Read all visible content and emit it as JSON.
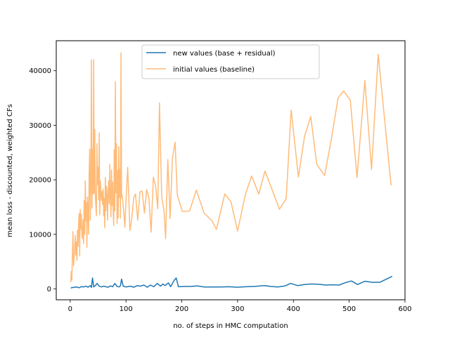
{
  "chart_data": {
    "type": "line",
    "title": "",
    "xlabel": "no. of steps in HMC computation",
    "ylabel": "mean loss - discounted, weighted CFs",
    "xlim": [
      -25,
      600
    ],
    "ylim": [
      -2000,
      45500
    ],
    "xticks": [
      0,
      100,
      200,
      300,
      400,
      500,
      600
    ],
    "yticks": [
      0,
      10000,
      20000,
      30000,
      40000
    ],
    "grid": false,
    "legend_position": "top-center",
    "series": [
      {
        "name": "new values (base + residual)",
        "color": "#1f77b4",
        "points": [
          [
            1,
            150
          ],
          [
            4,
            250
          ],
          [
            8,
            300
          ],
          [
            12,
            350
          ],
          [
            16,
            200
          ],
          [
            20,
            420
          ],
          [
            24,
            350
          ],
          [
            28,
            500
          ],
          [
            32,
            300
          ],
          [
            36,
            600
          ],
          [
            38,
            250
          ],
          [
            40,
            2000
          ],
          [
            42,
            350
          ],
          [
            45,
            600
          ],
          [
            48,
            1000
          ],
          [
            52,
            500
          ],
          [
            56,
            350
          ],
          [
            60,
            500
          ],
          [
            64,
            400
          ],
          [
            68,
            300
          ],
          [
            72,
            550
          ],
          [
            76,
            400
          ],
          [
            80,
            1000
          ],
          [
            84,
            450
          ],
          [
            88,
            350
          ],
          [
            90,
            600
          ],
          [
            92,
            1800
          ],
          [
            95,
            500
          ],
          [
            100,
            350
          ],
          [
            108,
            500
          ],
          [
            114,
            300
          ],
          [
            120,
            600
          ],
          [
            126,
            500
          ],
          [
            132,
            700
          ],
          [
            138,
            300
          ],
          [
            144,
            700
          ],
          [
            150,
            400
          ],
          [
            156,
            1000
          ],
          [
            162,
            500
          ],
          [
            166,
            900
          ],
          [
            170,
            600
          ],
          [
            176,
            1100
          ],
          [
            180,
            400
          ],
          [
            186,
            1500
          ],
          [
            190,
            2000
          ],
          [
            194,
            400
          ],
          [
            205,
            450
          ],
          [
            215,
            450
          ],
          [
            228,
            550
          ],
          [
            240,
            350
          ],
          [
            255,
            350
          ],
          [
            270,
            350
          ],
          [
            285,
            400
          ],
          [
            300,
            300
          ],
          [
            315,
            400
          ],
          [
            330,
            450
          ],
          [
            348,
            600
          ],
          [
            360,
            450
          ],
          [
            372,
            350
          ],
          [
            385,
            550
          ],
          [
            395,
            1000
          ],
          [
            408,
            600
          ],
          [
            420,
            800
          ],
          [
            432,
            900
          ],
          [
            445,
            850
          ],
          [
            458,
            700
          ],
          [
            470,
            750
          ],
          [
            482,
            700
          ],
          [
            492,
            1100
          ],
          [
            504,
            1450
          ],
          [
            515,
            800
          ],
          [
            528,
            1400
          ],
          [
            542,
            1200
          ],
          [
            555,
            1200
          ],
          [
            577,
            2300
          ]
        ]
      },
      {
        "name": "initial values (baseline)",
        "color": "#ffbb78",
        "points": [
          [
            1,
            1200
          ],
          [
            2,
            3200
          ],
          [
            3,
            1600
          ],
          [
            4,
            6500
          ],
          [
            5,
            10500
          ],
          [
            6,
            4200
          ],
          [
            8,
            7500
          ],
          [
            9,
            9800
          ],
          [
            10,
            6200
          ],
          [
            11,
            8600
          ],
          [
            12,
            5200
          ],
          [
            13,
            10700
          ],
          [
            14,
            7800
          ],
          [
            15,
            11800
          ],
          [
            16,
            13800
          ],
          [
            17,
            6100
          ],
          [
            18,
            14500
          ],
          [
            19,
            11000
          ],
          [
            20,
            13700
          ],
          [
            21,
            10000
          ],
          [
            22,
            9200
          ],
          [
            23,
            12700
          ],
          [
            24,
            8300
          ],
          [
            25,
            16200
          ],
          [
            26,
            10000
          ],
          [
            27,
            19800
          ],
          [
            28,
            12500
          ],
          [
            29,
            15800
          ],
          [
            30,
            7600
          ],
          [
            31,
            16800
          ],
          [
            32,
            14400
          ],
          [
            33,
            10000
          ],
          [
            34,
            21000
          ],
          [
            35,
            25600
          ],
          [
            36,
            12600
          ],
          [
            37,
            19500
          ],
          [
            38,
            42000
          ],
          [
            39,
            14800
          ],
          [
            40,
            25600
          ],
          [
            41,
            17400
          ],
          [
            42,
            42000
          ],
          [
            43,
            17500
          ],
          [
            44,
            29200
          ],
          [
            45,
            17200
          ],
          [
            46,
            15200
          ],
          [
            47,
            13400
          ],
          [
            48,
            26600
          ],
          [
            49,
            19200
          ],
          [
            50,
            22300
          ],
          [
            51,
            16300
          ],
          [
            52,
            28600
          ],
          [
            53,
            13600
          ],
          [
            54,
            19800
          ],
          [
            55,
            17800
          ],
          [
            56,
            16200
          ],
          [
            57,
            17900
          ],
          [
            58,
            15500
          ],
          [
            59,
            18300
          ],
          [
            60,
            13400
          ],
          [
            61,
            16600
          ],
          [
            62,
            11200
          ],
          [
            63,
            20400
          ],
          [
            64,
            14300
          ],
          [
            65,
            18800
          ],
          [
            66,
            17200
          ],
          [
            67,
            12600
          ],
          [
            68,
            17900
          ],
          [
            69,
            19800
          ],
          [
            70,
            15600
          ],
          [
            71,
            22800
          ],
          [
            72,
            17000
          ],
          [
            73,
            13200
          ],
          [
            74,
            21800
          ],
          [
            75,
            15300
          ],
          [
            76,
            19600
          ],
          [
            77,
            14600
          ],
          [
            78,
            11600
          ],
          [
            79,
            25500
          ],
          [
            80,
            14300
          ],
          [
            81,
            38000
          ],
          [
            82,
            17600
          ],
          [
            83,
            26600
          ],
          [
            84,
            12000
          ],
          [
            85,
            21700
          ],
          [
            86,
            13000
          ],
          [
            87,
            26100
          ],
          [
            88,
            16800
          ],
          [
            89,
            21900
          ],
          [
            90,
            13000
          ],
          [
            91,
            43300
          ],
          [
            92,
            16800
          ],
          [
            93,
            17200
          ],
          [
            96,
            14300
          ],
          [
            98,
            11300
          ],
          [
            100,
            16200
          ],
          [
            103,
            22300
          ],
          [
            107,
            10700
          ],
          [
            110,
            12600
          ],
          [
            114,
            16800
          ],
          [
            117,
            17400
          ],
          [
            121,
            12600
          ],
          [
            125,
            17800
          ],
          [
            129,
            17900
          ],
          [
            133,
            13900
          ],
          [
            137,
            18200
          ],
          [
            141,
            16700
          ],
          [
            145,
            10400
          ],
          [
            149,
            20500
          ],
          [
            153,
            18900
          ],
          [
            157,
            14700
          ],
          [
            160,
            34100
          ],
          [
            164,
            16800
          ],
          [
            168,
            14400
          ],
          [
            171,
            9200
          ],
          [
            175,
            23700
          ],
          [
            179,
            12900
          ],
          [
            183,
            23800
          ],
          [
            188,
            26900
          ],
          [
            192,
            17200
          ],
          [
            201,
            14200
          ],
          [
            214,
            14300
          ],
          [
            226,
            18100
          ],
          [
            240,
            13900
          ],
          [
            254,
            12500
          ],
          [
            262,
            10900
          ],
          [
            277,
            17400
          ],
          [
            288,
            16000
          ],
          [
            300,
            10600
          ],
          [
            314,
            17300
          ],
          [
            325,
            20700
          ],
          [
            338,
            17400
          ],
          [
            349,
            21600
          ],
          [
            360,
            18700
          ],
          [
            375,
            14600
          ],
          [
            387,
            16500
          ],
          [
            396,
            32800
          ],
          [
            409,
            20500
          ],
          [
            420,
            28000
          ],
          [
            431,
            31600
          ],
          [
            442,
            22800
          ],
          [
            456,
            20800
          ],
          [
            468,
            27400
          ],
          [
            480,
            35000
          ],
          [
            490,
            36300
          ],
          [
            502,
            34600
          ],
          [
            514,
            20400
          ],
          [
            528,
            38200
          ],
          [
            540,
            21900
          ],
          [
            552,
            43000
          ],
          [
            575,
            19000
          ]
        ]
      }
    ]
  }
}
